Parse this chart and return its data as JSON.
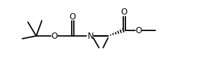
{
  "bg_color": "#ffffff",
  "line_color": "#000000",
  "lw": 1.3,
  "fs": 8.5,
  "figsize": [
    2.9,
    1.1
  ],
  "dpi": 100,
  "xlim": [
    0,
    290
  ],
  "ylim": [
    0,
    110
  ]
}
